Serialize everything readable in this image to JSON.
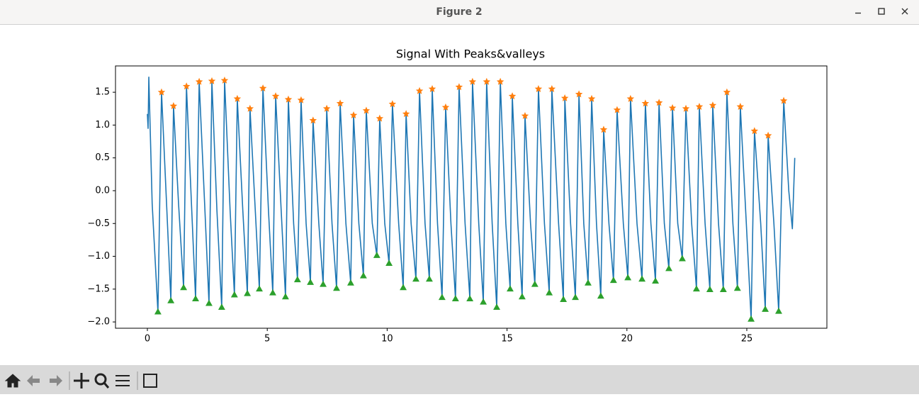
{
  "window": {
    "title": "Figure 2"
  },
  "chart_data": {
    "type": "line",
    "title": "Signal With Peaks&valleys",
    "xlim": [
      -1.33,
      28.34
    ],
    "ylim": [
      -2.096,
      1.901
    ],
    "xticks": [
      0,
      5,
      10,
      15,
      20,
      25
    ],
    "yticks": [
      {
        "value": -2.0,
        "label": "−2.0"
      },
      {
        "value": -1.5,
        "label": "−1.5"
      },
      {
        "value": -1.0,
        "label": "−1.0"
      },
      {
        "value": -0.5,
        "label": "−0.5"
      },
      {
        "value": 0.0,
        "label": "0.0"
      },
      0.5,
      {
        "value": 1.0,
        "label": "1.0"
      },
      1.5
    ],
    "series": [
      {
        "color": "#1f77b4",
        "marker": "none",
        "x": [
          0,
          0.03,
          0.06,
          0.2,
          0.44,
          0.59,
          0.8,
          0.98,
          1.09,
          1.3,
          1.51,
          1.63,
          1.85,
          2.01,
          2.16,
          2.4,
          2.57,
          2.69,
          2.9,
          3.1,
          3.22,
          3.45,
          3.63,
          3.75,
          3.98,
          4.17,
          4.28,
          4.5,
          4.67,
          4.82,
          5.05,
          5.23,
          5.35,
          5.58,
          5.76,
          5.88,
          6.1,
          6.26,
          6.41,
          6.62,
          6.8,
          6.91,
          7.15,
          7.33,
          7.48,
          7.7,
          7.89,
          8.04,
          8.28,
          8.48,
          8.6,
          8.82,
          9.01,
          9.13,
          9.38,
          9.57,
          9.69,
          9.9,
          10.08,
          10.22,
          10.48,
          10.67,
          10.79,
          11.0,
          11.2,
          11.35,
          11.58,
          11.76,
          11.88,
          12.1,
          12.29,
          12.44,
          12.66,
          12.85,
          13.0,
          13.25,
          13.45,
          13.56,
          13.82,
          14.01,
          14.15,
          14.38,
          14.57,
          14.72,
          14.95,
          15.13,
          15.22,
          15.45,
          15.63,
          15.75,
          15.98,
          16.16,
          16.31,
          16.56,
          16.76,
          16.87,
          17.15,
          17.35,
          17.41,
          17.65,
          17.85,
          18.0,
          18.2,
          18.38,
          18.53,
          18.73,
          18.91,
          19.03,
          19.25,
          19.44,
          19.59,
          19.85,
          20.04,
          20.15,
          20.42,
          20.63,
          20.77,
          21.0,
          21.19,
          21.34,
          21.56,
          21.75,
          21.9,
          22.12,
          22.31,
          22.46,
          22.7,
          22.9,
          23.02,
          23.26,
          23.46,
          23.58,
          23.82,
          24.02,
          24.17,
          24.42,
          24.61,
          24.73,
          24.98,
          25.18,
          25.32,
          25.58,
          25.77,
          25.89,
          26.13,
          26.33,
          26.54,
          26.75,
          26.9,
          27.0
        ],
        "values": [
          1.17,
          0.95,
          1.73,
          -0.2,
          -1.85,
          1.5,
          -0.2,
          -1.68,
          1.29,
          -0.2,
          -1.48,
          1.59,
          -0.3,
          -1.65,
          1.66,
          -0.3,
          -1.72,
          1.67,
          -0.3,
          -1.78,
          1.68,
          -0.3,
          -1.59,
          1.4,
          -0.3,
          -1.57,
          1.25,
          -0.3,
          -1.5,
          1.56,
          -0.3,
          -1.56,
          1.44,
          -0.3,
          -1.62,
          1.39,
          -0.5,
          -1.36,
          1.38,
          -0.5,
          -1.4,
          1.07,
          -0.5,
          -1.43,
          1.25,
          -0.5,
          -1.49,
          1.33,
          -0.5,
          -1.41,
          1.15,
          -0.5,
          -1.3,
          1.22,
          -0.5,
          -0.99,
          1.1,
          -0.5,
          -1.11,
          1.32,
          -0.5,
          -1.48,
          1.17,
          -0.5,
          -1.35,
          1.52,
          -0.5,
          -1.35,
          1.55,
          -0.5,
          -1.63,
          1.27,
          -0.5,
          -1.65,
          1.58,
          -0.5,
          -1.65,
          1.66,
          -0.5,
          -1.7,
          1.66,
          -0.5,
          -1.78,
          1.66,
          -0.5,
          -1.5,
          1.44,
          -0.5,
          -1.62,
          1.14,
          -0.5,
          -1.43,
          1.55,
          -0.5,
          -1.56,
          1.55,
          -0.5,
          -1.66,
          1.41,
          -0.5,
          -1.63,
          1.47,
          -0.5,
          -1.41,
          1.4,
          -0.5,
          -1.61,
          0.93,
          -0.5,
          -1.37,
          1.23,
          -0.5,
          -1.33,
          1.4,
          -0.5,
          -1.35,
          1.33,
          -0.5,
          -1.38,
          1.34,
          -0.5,
          -1.19,
          1.26,
          -0.5,
          -1.04,
          1.25,
          -0.5,
          -1.5,
          1.28,
          -0.5,
          -1.51,
          1.3,
          -0.5,
          -1.51,
          1.5,
          -0.5,
          -1.49,
          1.28,
          -0.5,
          -1.96,
          0.91,
          -0.5,
          -1.81,
          0.84,
          -0.5,
          -1.84,
          1.37,
          0.0,
          -0.58,
          0.5
        ]
      },
      {
        "color": "#ff7f0e",
        "marker": "star",
        "x": [
          0.59,
          1.09,
          1.63,
          2.16,
          2.69,
          3.22,
          3.75,
          4.28,
          4.82,
          5.35,
          5.88,
          6.41,
          6.91,
          7.48,
          8.04,
          8.6,
          9.13,
          9.69,
          10.22,
          10.79,
          11.35,
          11.88,
          12.44,
          13.0,
          13.56,
          14.15,
          14.72,
          15.22,
          15.75,
          16.31,
          16.87,
          17.41,
          18.0,
          18.53,
          19.03,
          19.59,
          20.15,
          20.77,
          21.34,
          21.9,
          22.46,
          23.02,
          23.58,
          24.17,
          24.73,
          25.32,
          25.89,
          26.54
        ],
        "values": [
          1.5,
          1.29,
          1.59,
          1.66,
          1.67,
          1.68,
          1.4,
          1.25,
          1.56,
          1.44,
          1.39,
          1.38,
          1.07,
          1.25,
          1.33,
          1.15,
          1.22,
          1.1,
          1.32,
          1.17,
          1.52,
          1.55,
          1.27,
          1.58,
          1.66,
          1.66,
          1.66,
          1.44,
          1.14,
          1.55,
          1.55,
          1.41,
          1.47,
          1.4,
          0.93,
          1.23,
          1.4,
          1.33,
          1.34,
          1.26,
          1.25,
          1.28,
          1.3,
          1.5,
          1.28,
          0.91,
          0.84,
          1.37
        ]
      },
      {
        "color": "#2ca02c",
        "marker": "triangle",
        "x": [
          0.44,
          0.98,
          1.51,
          2.01,
          2.57,
          3.1,
          3.63,
          4.17,
          4.67,
          5.23,
          5.76,
          6.26,
          6.8,
          7.33,
          7.89,
          8.48,
          9.01,
          9.57,
          10.08,
          10.67,
          11.2,
          11.76,
          12.29,
          12.85,
          13.45,
          14.01,
          14.57,
          15.13,
          15.63,
          16.16,
          16.76,
          17.35,
          17.85,
          18.38,
          18.91,
          19.44,
          20.04,
          20.63,
          21.19,
          21.75,
          22.31,
          22.9,
          23.46,
          24.02,
          24.61,
          25.18,
          25.77,
          26.33
        ],
        "values": [
          -1.85,
          -1.68,
          -1.48,
          -1.65,
          -1.72,
          -1.78,
          -1.59,
          -1.57,
          -1.5,
          -1.56,
          -1.62,
          -1.36,
          -1.4,
          -1.43,
          -1.49,
          -1.41,
          -1.3,
          -0.99,
          -1.11,
          -1.48,
          -1.35,
          -1.35,
          -1.63,
          -1.65,
          -1.65,
          -1.7,
          -1.78,
          -1.5,
          -1.62,
          -1.43,
          -1.56,
          -1.66,
          -1.63,
          -1.41,
          -1.61,
          -1.37,
          -1.33,
          -1.35,
          -1.38,
          -1.19,
          -1.04,
          -1.5,
          -1.51,
          -1.51,
          -1.49,
          -1.96,
          -1.81,
          -1.84
        ]
      }
    ]
  }
}
